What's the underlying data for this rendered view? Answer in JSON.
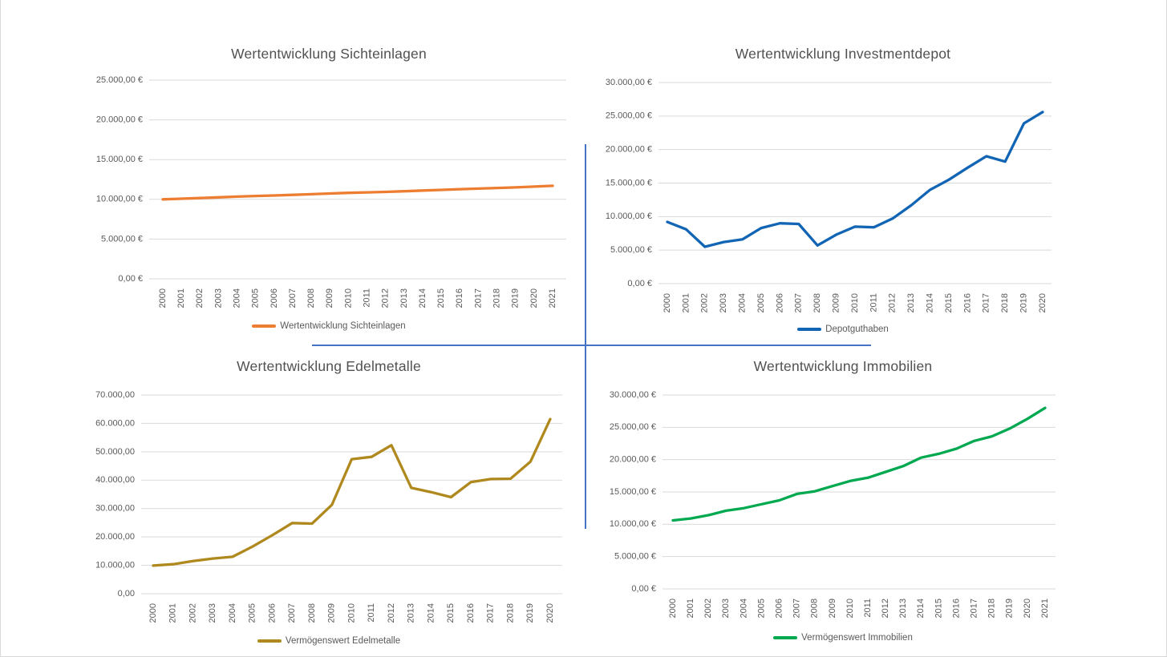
{
  "page": {
    "background": "#ffffff",
    "border_color": "#d9d9d9",
    "divider_color": "#4472C4",
    "gridline_color": "#D9D9D9",
    "axis_text_color": "#595959",
    "title_text_color": "#515151"
  },
  "chart_data": [
    {
      "type": "line",
      "title": "Wertentwicklung Sichteinlagen",
      "legend": "Wertentwicklung Sichteinlagen",
      "legend_position": "bottom",
      "series_color": "#ED7D31",
      "grid": true,
      "xlabel": "",
      "ylabel": "",
      "ylim": [
        0,
        25000
      ],
      "ytick_step": 5000,
      "ytick_labels": [
        "25.000,00 €",
        "20.000,00 €",
        "15.000,00 €",
        "10.000,00 €",
        "5.000,00 €",
        "0,00 €"
      ],
      "x": [
        "2000",
        "2001",
        "2002",
        "2003",
        "2004",
        "2005",
        "2006",
        "2007",
        "2008",
        "2009",
        "2010",
        "2011",
        "2012",
        "2013",
        "2014",
        "2015",
        "2016",
        "2017",
        "2018",
        "2019",
        "2020",
        "2021"
      ],
      "values": [
        10000,
        10080,
        10160,
        10250,
        10340,
        10420,
        10480,
        10560,
        10650,
        10740,
        10820,
        10880,
        10940,
        11020,
        11110,
        11190,
        11280,
        11350,
        11430,
        11500,
        11600,
        11700
      ]
    },
    {
      "type": "line",
      "title": "Wertentwicklung Investmentdepot",
      "legend": "Depotguthaben",
      "legend_position": "bottom",
      "series_color": "#1265B4",
      "grid": true,
      "xlabel": "",
      "ylabel": "",
      "ylim": [
        0,
        30000
      ],
      "ytick_step": 5000,
      "ytick_labels": [
        "30.000,00 €",
        "25.000,00 €",
        "20.000,00 €",
        "15.000,00 €",
        "10.000,00 €",
        "5.000,00 €",
        "0,00 €"
      ],
      "x": [
        "2000",
        "2001",
        "2002",
        "2003",
        "2004",
        "2005",
        "2006",
        "2007",
        "2008",
        "2009",
        "2010",
        "2011",
        "2012",
        "2013",
        "2014",
        "2015",
        "2016",
        "2017",
        "2018",
        "2019",
        "2020"
      ],
      "values": [
        9200,
        8100,
        5500,
        6200,
        6600,
        8300,
        9000,
        8900,
        5700,
        7300,
        8500,
        8400,
        9700,
        11700,
        14000,
        15500,
        17300,
        19000,
        18200,
        23900,
        25600
      ]
    },
    {
      "type": "line",
      "title": "Wertentwicklung Edelmetalle",
      "legend": "Vermögenswert Edelmetalle",
      "legend_position": "bottom",
      "series_color": "#B0891E",
      "grid": true,
      "xlabel": "",
      "ylabel": "",
      "ylim": [
        0,
        70000
      ],
      "ytick_step": 10000,
      "ytick_labels": [
        "70.000,00",
        "60.000,00",
        "50.000,00",
        "40.000,00",
        "30.000,00",
        "20.000,00",
        "10.000,00",
        "0,00"
      ],
      "x": [
        "2000",
        "2001",
        "2002",
        "2003",
        "2004",
        "2005",
        "2006",
        "2007",
        "2008",
        "2009",
        "2010",
        "2011",
        "2012",
        "2013",
        "2014",
        "2015",
        "2016",
        "2017",
        "2018",
        "2019",
        "2020"
      ],
      "values": [
        9900,
        10400,
        11500,
        12400,
        13000,
        16600,
        20600,
        24900,
        24700,
        31300,
        47400,
        48200,
        52300,
        37300,
        35800,
        34000,
        39300,
        40400,
        40500,
        46500,
        61500
      ]
    },
    {
      "type": "line",
      "title": "Wertentwicklung Immobilien",
      "legend": "Vermögenswert Immobilien",
      "legend_position": "bottom",
      "series_color": "#00A950",
      "grid": true,
      "xlabel": "",
      "ylabel": "",
      "ylim": [
        0,
        30000
      ],
      "ytick_step": 5000,
      "ytick_labels": [
        "30.000,00 €",
        "25.000,00 €",
        "20.000,00 €",
        "15.000,00 €",
        "10.000,00 €",
        "5.000,00 €",
        "0,00 €"
      ],
      "x": [
        "2000",
        "2001",
        "2002",
        "2003",
        "2004",
        "2005",
        "2006",
        "2007",
        "2008",
        "2009",
        "2010",
        "2011",
        "2012",
        "2013",
        "2014",
        "2015",
        "2016",
        "2017",
        "2018",
        "2019",
        "2020",
        "2021"
      ],
      "values": [
        10600,
        10900,
        11400,
        12100,
        12500,
        13100,
        13700,
        14700,
        15100,
        15900,
        16700,
        17200,
        18100,
        19000,
        20300,
        20900,
        21700,
        22900,
        23600,
        24800,
        26300,
        28000
      ]
    }
  ]
}
